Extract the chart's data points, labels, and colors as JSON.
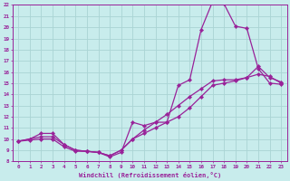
{
  "xlabel": "Windchill (Refroidissement éolien,°C)",
  "xlim": [
    -0.5,
    23.5
  ],
  "ylim": [
    8,
    22
  ],
  "xticks": [
    0,
    1,
    2,
    3,
    4,
    5,
    6,
    7,
    8,
    9,
    10,
    11,
    12,
    13,
    14,
    15,
    16,
    17,
    18,
    19,
    20,
    21,
    22,
    23
  ],
  "yticks": [
    8,
    9,
    10,
    11,
    12,
    13,
    14,
    15,
    16,
    17,
    18,
    19,
    20,
    21,
    22
  ],
  "bg_color": "#c8ecec",
  "grid_color": "#aad4d4",
  "line_color": "#992299",
  "line1": {
    "x": [
      0,
      1,
      2,
      3,
      4,
      5,
      6,
      7,
      8,
      9,
      10,
      11,
      12,
      13,
      14,
      15,
      16,
      17,
      18,
      19,
      20,
      21,
      22,
      23
    ],
    "y": [
      9.8,
      10.0,
      10.5,
      10.5,
      9.5,
      9.0,
      8.9,
      8.8,
      8.4,
      8.8,
      11.5,
      11.2,
      11.5,
      11.5,
      14.8,
      15.3,
      19.8,
      22.3,
      22.1,
      20.1,
      19.9,
      16.3,
      15.0,
      14.9
    ]
  },
  "line2": {
    "x": [
      0,
      1,
      2,
      3,
      4,
      5,
      6,
      7,
      8,
      9,
      10,
      11,
      12,
      13,
      14,
      15,
      16,
      17,
      18,
      19,
      20,
      21,
      22,
      23
    ],
    "y": [
      9.8,
      10.0,
      10.2,
      10.2,
      9.5,
      9.0,
      8.9,
      8.8,
      8.5,
      9.0,
      10.0,
      10.5,
      11.0,
      11.5,
      12.0,
      12.8,
      13.8,
      14.8,
      15.0,
      15.2,
      15.5,
      16.5,
      15.5,
      15.1
    ]
  },
  "line3": {
    "x": [
      0,
      1,
      2,
      3,
      4,
      5,
      6,
      7,
      8,
      9,
      10,
      11,
      12,
      13,
      14,
      15,
      16,
      17,
      18,
      19,
      20,
      21,
      22,
      23
    ],
    "y": [
      9.8,
      9.9,
      10.0,
      10.0,
      9.3,
      8.9,
      8.9,
      8.8,
      8.5,
      9.0,
      10.0,
      10.8,
      11.5,
      12.2,
      13.0,
      13.8,
      14.5,
      15.2,
      15.3,
      15.3,
      15.5,
      15.8,
      15.6,
      15.0
    ]
  }
}
